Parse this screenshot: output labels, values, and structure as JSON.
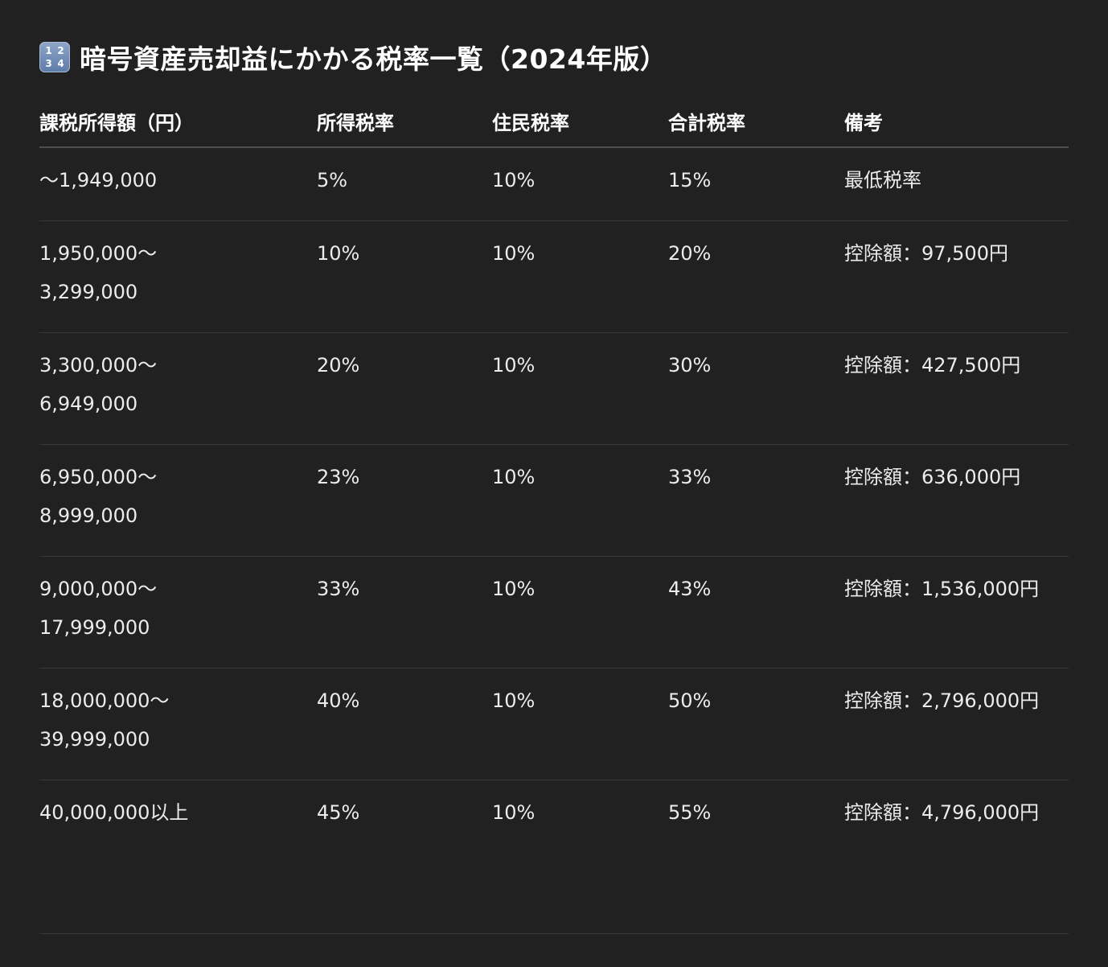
{
  "title": {
    "icon": "input-numbers-icon",
    "icon_digits": [
      "1",
      "2",
      "3",
      "4"
    ],
    "text": "暗号資産売却益にかかる税率一覧（2024年版）"
  },
  "table": {
    "headers": [
      "課税所得額（円）",
      "所得税率",
      "住民税率",
      "合計税率",
      "備考"
    ],
    "rows": [
      {
        "range": [
          "～1,949,000"
        ],
        "income_tax": "5%",
        "resident_tax": "10%",
        "total": "15%",
        "note": "最低税率"
      },
      {
        "range": [
          "1,950,000～",
          "3,299,000"
        ],
        "income_tax": "10%",
        "resident_tax": "10%",
        "total": "20%",
        "note": "控除額：97,500円"
      },
      {
        "range": [
          "3,300,000～",
          "6,949,000"
        ],
        "income_tax": "20%",
        "resident_tax": "10%",
        "total": "30%",
        "note": "控除額：427,500円"
      },
      {
        "range": [
          "6,950,000～",
          "8,999,000"
        ],
        "income_tax": "23%",
        "resident_tax": "10%",
        "total": "33%",
        "note": "控除額：636,000円"
      },
      {
        "range": [
          "9,000,000～",
          "17,999,000"
        ],
        "income_tax": "33%",
        "resident_tax": "10%",
        "total": "43%",
        "note": "控除額：1,536,000円"
      },
      {
        "range": [
          "18,000,000～",
          "39,999,000"
        ],
        "income_tax": "40%",
        "resident_tax": "10%",
        "total": "50%",
        "note": "控除額：2,796,000円"
      },
      {
        "range": [
          "40,000,000以上"
        ],
        "income_tax": "45%",
        "resident_tax": "10%",
        "total": "55%",
        "note": "控除額：4,796,000円"
      }
    ]
  },
  "colors": {
    "background": "#212121",
    "text": "#ececec",
    "header_rule": "#4e4e4e",
    "row_rule": "#383838"
  }
}
